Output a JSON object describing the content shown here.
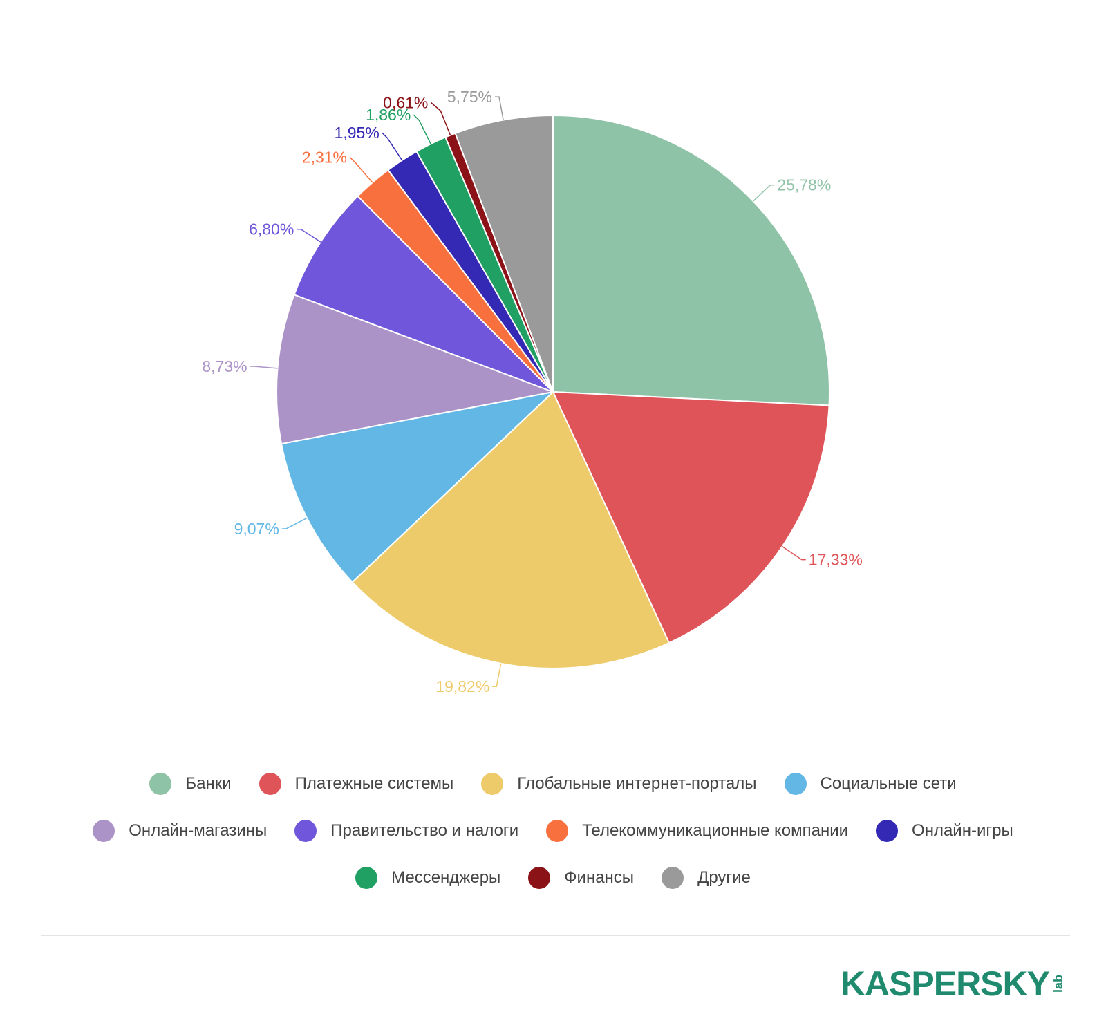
{
  "chart_data": {
    "type": "pie",
    "series": [
      {
        "name": "Банки",
        "value": 25.78,
        "label": "25,78%",
        "color": "#8fc3a7"
      },
      {
        "name": "Платежные системы",
        "value": 17.33,
        "label": "17,33%",
        "color": "#df5459"
      },
      {
        "name": "Глобальные интернет-порталы",
        "value": 19.82,
        "label": "19,82%",
        "color": "#eecb6a"
      },
      {
        "name": "Социальные сети",
        "value": 9.07,
        "label": "9,07%",
        "color": "#62b7e5"
      },
      {
        "name": "Онлайн-магазины",
        "value": 8.73,
        "label": "8,73%",
        "color": "#ac93c7"
      },
      {
        "name": "Правительство и налоги",
        "value": 6.8,
        "label": "6,80%",
        "color": "#6f56da"
      },
      {
        "name": "Телекоммуникационные компании",
        "value": 2.31,
        "label": "2,31%",
        "color": "#f9703f"
      },
      {
        "name": "Онлайн-игры",
        "value": 1.95,
        "label": "1,95%",
        "color": "#3329b5"
      },
      {
        "name": "Мессенджеры",
        "value": 1.86,
        "label": "1,86%",
        "color": "#21a063"
      },
      {
        "name": "Финансы",
        "value": 0.61,
        "label": "0,61%",
        "color": "#8b1317"
      },
      {
        "name": "Другие",
        "value": 5.75,
        "label": "5,75%",
        "color": "#9a9a9a"
      }
    ],
    "legend_position": "bottom"
  },
  "logo": {
    "text": "KASPERSKY",
    "suffix": "lab",
    "color": "#1f8a6e",
    "accent": "#e53935"
  }
}
